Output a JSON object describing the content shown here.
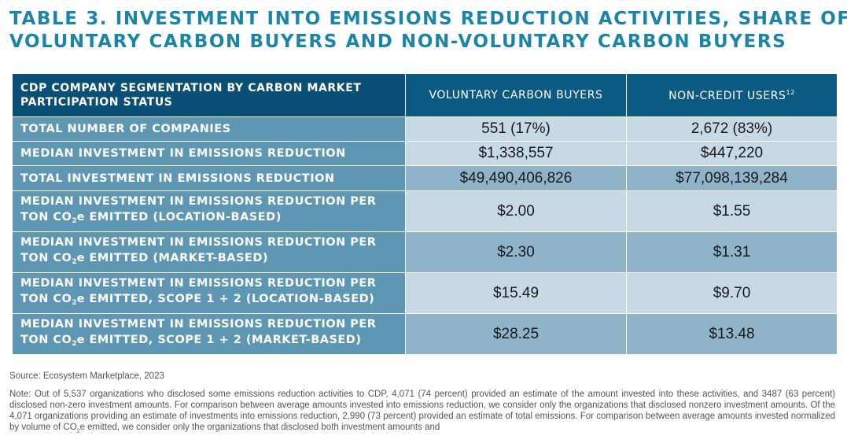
{
  "title": {
    "line1": "TABLE 3. INVESTMENT INTO EMISSIONS REDUCTION ACTIVITIES, SHARE OF",
    "line2": "VOLUNTARY CARBON BUYERS AND NON-VOLUNTARY CARBON BUYERS"
  },
  "table": {
    "headers": {
      "segmentation": "CDP COMPANY SEGMENTATION BY CARBON MARKET PARTICIPATION STATUS",
      "voluntary": "VOLUNTARY CARBON BUYERS",
      "noncredit": "NON-CREDIT USERS",
      "noncredit_footnote": "12"
    },
    "rows": [
      {
        "label": "TOTAL NUMBER OF COMPANIES",
        "voluntary": "551 (17%)",
        "noncredit": "2,672 (83%)"
      },
      {
        "label": "MEDIAN INVESTMENT IN EMISSIONS REDUCTION",
        "voluntary": "$1,338,557",
        "noncredit": "$447,220"
      },
      {
        "label": "TOTAL INVESTMENT IN EMISSIONS REDUCTION",
        "voluntary": "$49,490,406,826",
        "noncredit": "$77,098,139,284"
      },
      {
        "label_a": "MEDIAN INVESTMENT IN EMISSIONS REDUCTION PER",
        "label_b": "TON CO",
        "label_sub": "2",
        "label_c": "e EMITTED (LOCATION-BASED)",
        "voluntary": "$2.00",
        "noncredit": "$1.55"
      },
      {
        "label_a": "MEDIAN INVESTMENT IN EMISSIONS REDUCTION PER",
        "label_b": "TON CO",
        "label_sub": "2",
        "label_c": "e EMITTED (MARKET-BASED)",
        "voluntary": "$2.30",
        "noncredit": "$1.31"
      },
      {
        "label_a": "MEDIAN INVESTMENT IN EMISSIONS REDUCTION PER",
        "label_b": "TON CO",
        "label_sub": "2",
        "label_c": "e EMITTED, SCOPE 1 + 2 (LOCATION-BASED)",
        "voluntary": "$15.49",
        "noncredit": "$9.70"
      },
      {
        "label_a": "MEDIAN INVESTMENT IN EMISSIONS REDUCTION PER",
        "label_b": "TON CO",
        "label_sub": "2",
        "label_c": "e EMITTED, SCOPE 1 + 2 (MARKET-BASED)",
        "voluntary": "$28.25",
        "noncredit": "$13.48"
      }
    ]
  },
  "source": "Source: Ecosystem Marketplace, 2023",
  "note": {
    "text_a": "Note: Out of 5,537 organizations who disclosed some emissions reduction activities to CDP, 4,071 (74 percent) provided an estimate of the amount invested into these activities, and 3487 (63 percent) disclosed non-zero investment amounts. For comparison between average amounts invested into emissions reduction, we consider only the organizations that disclosed nonzero investment amounts. Of the 4,071 organizations providing an estimate of investments into emissions reduction, 2,990 (73 percent) provided an estimate of total emissions. For comparison between average amounts invested normalized by volume of CO",
    "text_sub": "2",
    "text_b": "e emitted, we consider only the organizations that disclosed both investment amounts and"
  },
  "colors": {
    "title": "#1a85a8",
    "header_bg": "#0c5a82",
    "label_bg": "#5d97b3",
    "value_light": "#c8d9e6",
    "value_dark": "#8fb3c9"
  }
}
